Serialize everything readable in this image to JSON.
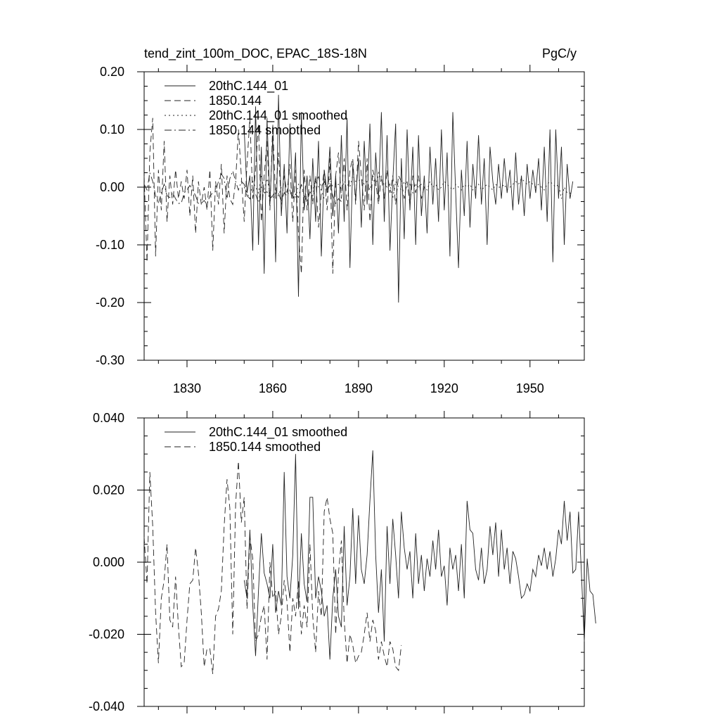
{
  "chart_data": [
    {
      "type": "line",
      "title": "tend_zint_100m_DOC, EPAC_18S-18N",
      "units": "PgC/y",
      "xlim": [
        1815,
        1969
      ],
      "ylim": [
        -0.3,
        0.2
      ],
      "xticks": [
        1830,
        1860,
        1890,
        1920,
        1950
      ],
      "yticks": [
        -0.3,
        -0.2,
        -0.1,
        0.0,
        0.1,
        0.2
      ],
      "ytick_labels": [
        "-0.30",
        "-0.20",
        "-0.10",
        "0.00",
        "0.10",
        "0.20"
      ],
      "series": [
        {
          "name": "20thC.144_01",
          "dash": "solid",
          "x_start": 1850,
          "values": [
            0.1,
            -0.01,
            0.02,
            -0.11,
            0.14,
            -0.1,
            0.07,
            -0.15,
            0.12,
            -0.03,
            0.09,
            -0.13,
            0.16,
            -0.05,
            0.04,
            -0.08,
            0.11,
            -0.02,
            0.06,
            -0.19,
            0.13,
            -0.04,
            0.02,
            -0.09,
            0.05,
            -0.06,
            0.08,
            -0.12,
            0.03,
            -0.01,
            0.07,
            -0.05,
            0.02,
            -0.08,
            0.09,
            -0.06,
            0.12,
            -0.14,
            0.04,
            -0.02,
            0.05,
            -0.07,
            0.08,
            -0.03,
            0.11,
            -0.1,
            0.06,
            -0.02,
            0.13,
            -0.06,
            0.09,
            -0.11,
            0.01,
            0.11,
            -0.2,
            0.05,
            -0.09,
            0.1,
            -0.04,
            0.07,
            -0.1,
            0.09,
            -0.05,
            0.02,
            -0.08,
            0.07,
            -0.03,
            0.05,
            -0.06,
            0.1,
            -0.04,
            0.06,
            -0.12,
            0.13,
            -0.01,
            -0.14,
            0.03,
            -0.05,
            0.08,
            -0.07,
            0.04,
            -0.02,
            0.09,
            -0.03,
            0.05,
            -0.1,
            0.07,
            0.01,
            -0.03,
            0.04,
            -0.02,
            0.05,
            -0.01,
            0.03,
            -0.04,
            0.06,
            -0.03,
            0.02,
            -0.05,
            0.04,
            -0.02,
            0.03,
            -0.01,
            0.05,
            -0.04,
            0.07,
            -0.06,
            0.1,
            -0.13,
            0.1,
            -0.02,
            0.07,
            -0.1,
            0.04,
            -0.02,
            0.01
          ]
        },
        {
          "name": "1850.144",
          "dash": "dashed",
          "x_start": 1815,
          "values": [
            0.02,
            -0.13,
            0.06,
            0.12,
            -0.12,
            0.03,
            -0.04,
            0.08,
            -0.06,
            0.02,
            -0.03,
            0.03,
            -0.02,
            0.01,
            -0.02,
            0.03,
            -0.05,
            0.02,
            -0.08,
            0.01,
            -0.03,
            0.0,
            -0.04,
            0.03,
            -0.11,
            0.01,
            -0.03,
            0.04,
            -0.08,
            0.02,
            -0.02,
            -0.03,
            0.01,
            0.1,
            0.02,
            -0.06,
            0.04,
            0.12,
            -0.02,
            0.03,
            0.11,
            -0.06,
            0.02,
            0.08,
            -0.04,
            0.11,
            -0.02,
            0.06,
            -0.03,
            0.02,
            -0.01,
            0.04,
            -0.06,
            0.03,
            -0.08,
            -0.15,
            0.03,
            -0.04,
            0.02,
            -0.03,
            0.02,
            -0.07,
            -0.01,
            0.03,
            -0.04,
            0.05,
            -0.15,
            0.02,
            0.06,
            -0.02,
            0.05,
            -0.04,
            0.03,
            0.05,
            -0.03,
            0.08,
            0.02,
            -0.04,
            0.05,
            -0.06,
            0.03,
            0.01,
            -0.03,
            0.02,
            -0.02,
            0.03,
            -0.01,
            0.02,
            -0.03,
            0.02,
            0.01,
            -0.02,
            0.01,
            -0.03,
            0.02,
            -0.01,
            0.02,
            -0.02,
            0.0
          ]
        },
        {
          "name": "20thC.144_01 smoothed",
          "dash": "dotted",
          "x_start": 1850,
          "values": [
            0.0,
            -0.01,
            -0.02,
            0.01,
            0.0,
            -0.01,
            0.02,
            -0.005,
            0.015,
            -0.01,
            -0.02,
            -0.01,
            -0.015,
            0.0,
            -0.01,
            -0.005,
            -0.01,
            -0.015,
            -0.02,
            0.005,
            -0.005,
            -0.01,
            -0.015,
            -0.01,
            -0.005,
            0.01,
            0.0,
            -0.005,
            -0.02,
            -0.01,
            0.015,
            0.0,
            0.0,
            0.005,
            -0.005,
            0.01,
            0.005,
            0.0,
            0.02,
            0.01,
            0.01,
            0.015,
            0.005,
            0.01,
            -0.005,
            0.02,
            0.0,
            0.025,
            0.01,
            0.005,
            0.0,
            0.005,
            -0.02,
            0.01,
            0.0,
            -0.005,
            0.01,
            0.0,
            0.005,
            -0.01,
            0.005,
            0.0,
            0.005,
            0.0,
            -0.005,
            0.01,
            0.0,
            0.005,
            -0.005,
            0.0,
            0.01,
            0.005,
            0.0,
            -0.005,
            0.005,
            0.0,
            -0.005,
            0.005,
            0.0,
            0.005,
            -0.005,
            0.0,
            0.005,
            -0.005,
            0.0,
            0.005,
            0.0,
            -0.005,
            0.005,
            0.0,
            0.0,
            0.005,
            -0.005,
            0.0,
            0.005,
            0.01,
            0.005,
            0.015,
            0.01,
            0.005,
            0.01,
            0.005,
            0.0,
            0.005,
            0.0,
            -0.005,
            0.005,
            0.01,
            0.005,
            0.0,
            0.005,
            -0.02,
            0.0,
            -0.01,
            -0.01,
            -0.015
          ]
        },
        {
          "name": "1850.144 smoothed",
          "dash": "dashdot",
          "x_start": 1815,
          "values": [
            0.005,
            -0.005,
            0.025,
            0.01,
            -0.015,
            -0.028,
            -0.01,
            0.005,
            -0.015,
            -0.018,
            -0.01,
            -0.02,
            -0.028,
            -0.028,
            -0.01,
            -0.005,
            0.003,
            -0.005,
            -0.015,
            -0.028,
            -0.028,
            -0.023,
            -0.03,
            -0.015,
            -0.01,
            -0.008,
            0.01,
            0.023,
            0.015,
            -0.02,
            0.015,
            0.028,
            0.01,
            -0.005,
            0.01,
            0.005,
            -0.015,
            -0.02,
            -0.015,
            -0.012,
            -0.027,
            0.0,
            -0.01,
            -0.008,
            -0.02,
            -0.015,
            -0.005,
            -0.01,
            -0.025,
            -0.01,
            -0.015,
            -0.005,
            -0.02,
            -0.012,
            -0.018,
            0.005,
            -0.015,
            -0.025,
            -0.008,
            -0.015,
            0.01,
            0.018,
            0.0,
            0.01,
            -0.005,
            0.003,
            -0.015,
            -0.028,
            -0.02,
            -0.025
          ]
        }
      ],
      "legend": {
        "placement": "top-left",
        "items": [
          "20thC.144_01",
          "1850.144",
          "20thC.144_01 smoothed",
          "1850.144 smoothed"
        ]
      }
    },
    {
      "type": "line",
      "title": "",
      "xlim": [
        1815,
        1969
      ],
      "ylim": [
        -0.04,
        0.04
      ],
      "xticks": [
        1830,
        1860,
        1890,
        1920,
        1950
      ],
      "yticks": [
        -0.04,
        -0.02,
        0.0,
        0.02,
        0.04
      ],
      "ytick_labels": [
        "-0.040",
        "-0.020",
        "0.000",
        "0.020",
        "0.040"
      ],
      "series": [
        {
          "name": "20thC.144_01 smoothed",
          "dash": "solid",
          "x_start": 1850,
          "values": [
            -0.005,
            -0.01,
            0.009,
            -0.012,
            -0.026,
            -0.008,
            0.008,
            -0.003,
            -0.006,
            -0.01,
            0.005,
            -0.014,
            -0.008,
            -0.012,
            0.025,
            -0.004,
            -0.01,
            0.002,
            0.03,
            -0.013,
            0.008,
            -0.006,
            -0.011,
            0.018,
            0.018,
            -0.01,
            -0.004,
            -0.008,
            -0.015,
            -0.012,
            -0.027,
            -0.01,
            -0.002,
            -0.015,
            -0.018,
            0.01,
            -0.012,
            -0.004,
            0.015,
            -0.006,
            0.013,
            -0.002,
            -0.006,
            0.002,
            0.017,
            0.031,
            0.002,
            -0.014,
            -0.002,
            -0.022,
            0.01,
            -0.006,
            0.012,
            0.002,
            -0.01,
            0.014,
            0.004,
            -0.002,
            0.003,
            -0.01,
            0.008,
            -0.006,
            0.002,
            -0.008,
            0.001,
            -0.004,
            0.006,
            -0.002,
            0.009,
            -0.004,
            -0.001,
            -0.012,
            0.004,
            -0.002,
            0.002,
            -0.008,
            0.005,
            -0.01,
            0.017,
            0.009,
            0.008,
            -0.002,
            -0.005,
            0.004,
            -0.006,
            -0.002,
            0.01,
            0.002,
            0.011,
            -0.004,
            0.009,
            -0.002,
            0.004,
            -0.006,
            0.003,
            0.001,
            -0.004,
            -0.01,
            -0.009,
            -0.006,
            -0.008,
            -0.002,
            -0.004,
            0.002,
            -0.001,
            0.004,
            -0.002,
            0.003,
            -0.004,
            0.001,
            0.009,
            0.005,
            0.017,
            0.006,
            0.014,
            -0.003,
            -0.002,
            0.014,
            -0.003,
            -0.022,
            0.001,
            -0.008,
            -0.009,
            -0.017
          ]
        },
        {
          "name": "1850.144 smoothed",
          "dash": "dashed",
          "x_start": 1815,
          "values": [
            0.007,
            -0.006,
            0.025,
            0.01,
            -0.014,
            -0.028,
            -0.01,
            -0.005,
            0.005,
            -0.016,
            -0.018,
            -0.004,
            -0.018,
            -0.029,
            -0.028,
            -0.016,
            -0.006,
            -0.005,
            0.004,
            -0.003,
            -0.014,
            -0.029,
            -0.024,
            -0.024,
            -0.031,
            -0.015,
            -0.013,
            -0.008,
            0.01,
            0.023,
            0.015,
            -0.02,
            0.016,
            0.028,
            0.011,
            0.018,
            -0.013,
            0.007,
            0.001,
            -0.022,
            -0.02,
            -0.015,
            -0.012,
            -0.027,
            0.0,
            -0.01,
            -0.008,
            -0.02,
            -0.015,
            -0.005,
            -0.011,
            -0.025,
            -0.01,
            -0.015,
            -0.005,
            -0.02,
            -0.012,
            -0.018,
            0.005,
            -0.015,
            -0.025,
            -0.008,
            -0.015,
            0.014,
            0.018,
            0.012,
            0.008,
            -0.02,
            -0.003,
            0.006,
            -0.016,
            -0.028,
            -0.02,
            -0.023,
            -0.028,
            -0.026,
            -0.025,
            -0.02,
            -0.014,
            -0.022,
            -0.016,
            -0.019,
            -0.027,
            -0.022,
            -0.026,
            -0.029,
            -0.022,
            -0.024,
            -0.029,
            -0.03,
            -0.023
          ]
        }
      ],
      "legend": {
        "placement": "top-left",
        "items": [
          "20thC.144_01 smoothed",
          "1850.144 smoothed"
        ]
      }
    }
  ]
}
